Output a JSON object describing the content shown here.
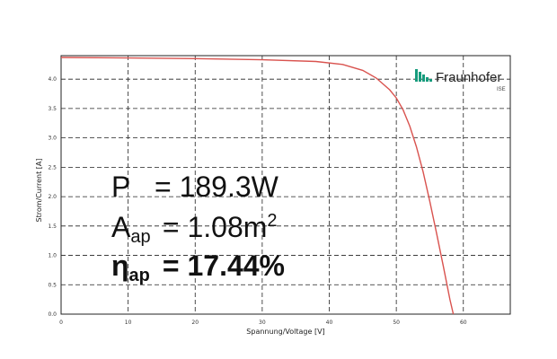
{
  "chart_data": {
    "type": "line",
    "xlabel": "Spannung/Voltage [V]",
    "ylabel": "Strom/Current [A]",
    "xlim": [
      0,
      67
    ],
    "ylim": [
      0,
      4.4
    ],
    "x_ticks": [
      "0",
      "10",
      "20",
      "30",
      "40",
      "50",
      "60"
    ],
    "y_ticks": [
      "0.0",
      "0.5",
      "1.0",
      "1.5",
      "2.0",
      "2.5",
      "3.0",
      "3.5",
      "4.0"
    ],
    "grid": true,
    "line_color": "#d9534f",
    "series": [
      {
        "x": [
          0,
          10,
          20,
          30,
          38,
          42,
          45,
          47,
          49,
          50,
          51,
          52,
          53,
          54,
          55,
          56,
          57,
          58,
          58.5
        ],
        "y": [
          4.37,
          4.36,
          4.35,
          4.33,
          4.3,
          4.25,
          4.15,
          4.02,
          3.82,
          3.68,
          3.48,
          3.2,
          2.85,
          2.42,
          1.92,
          1.38,
          0.82,
          0.25,
          0.0
        ]
      }
    ]
  },
  "annotations": {
    "power": {
      "symbol": "P",
      "value": "= 189.3W"
    },
    "area": {
      "symbol": "A",
      "subscript": "ap",
      "value": "= 1.08m",
      "superscript": "2"
    },
    "efficiency": {
      "symbol": "η",
      "subscript": "ap",
      "value": "= 17.44%"
    }
  },
  "logo": {
    "name": "Fraunhofer",
    "sub": "ISE",
    "color": "#179c7d",
    "icon": "fraunhofer-logo-icon"
  }
}
